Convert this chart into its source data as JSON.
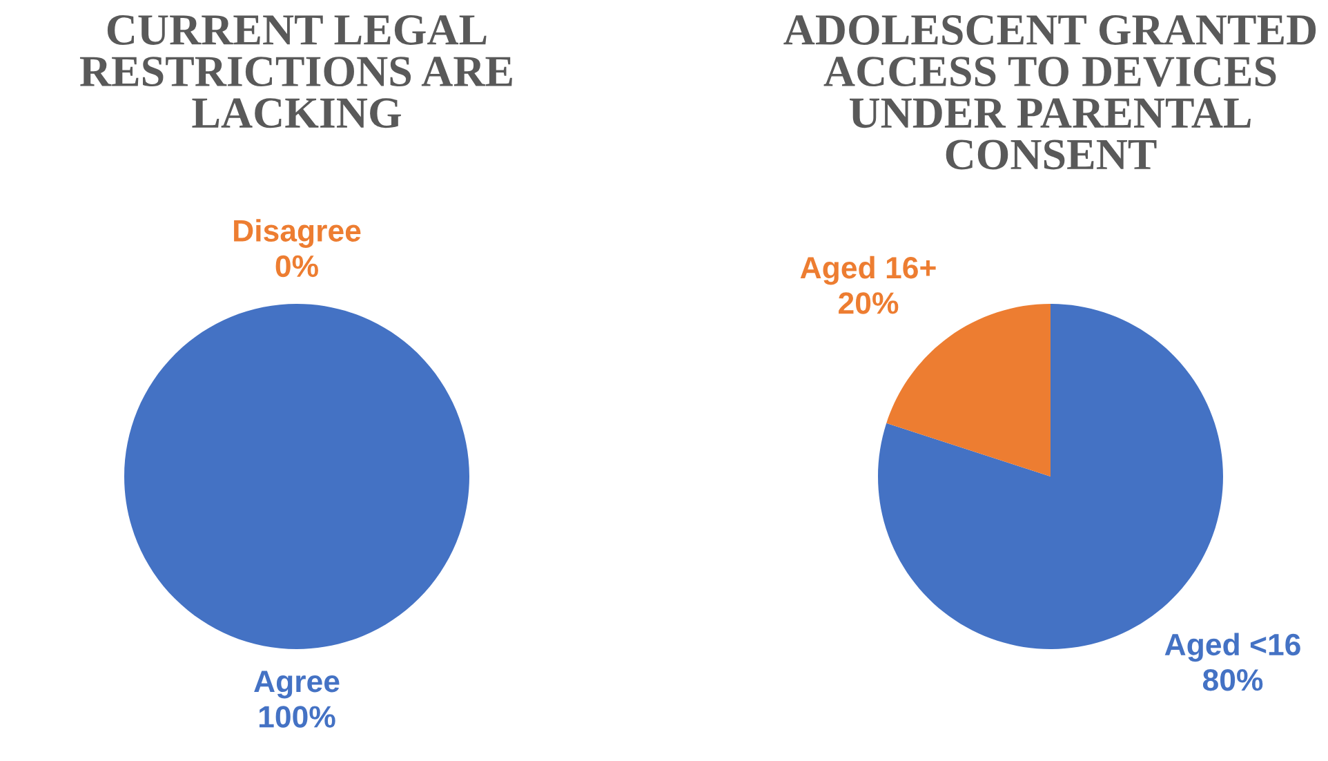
{
  "chart_data": [
    {
      "type": "pie",
      "title": "CURRENT LEGAL RESTRICTIONS ARE LACKING",
      "categories": [
        "Agree",
        "Disagree"
      ],
      "values": [
        100,
        0
      ],
      "colors": [
        "#4472c4",
        "#ed7d31"
      ],
      "value_labels": [
        "100%",
        "0%"
      ]
    },
    {
      "type": "pie",
      "title": "ADOLESCENT GRANTED ACCESS TO DEVICES UNDER PARENTAL CONSENT",
      "categories": [
        "Aged <16",
        "Aged 16+"
      ],
      "values": [
        80,
        20
      ],
      "colors": [
        "#4472c4",
        "#ed7d31"
      ],
      "value_labels": [
        "80%",
        "20%"
      ]
    }
  ]
}
